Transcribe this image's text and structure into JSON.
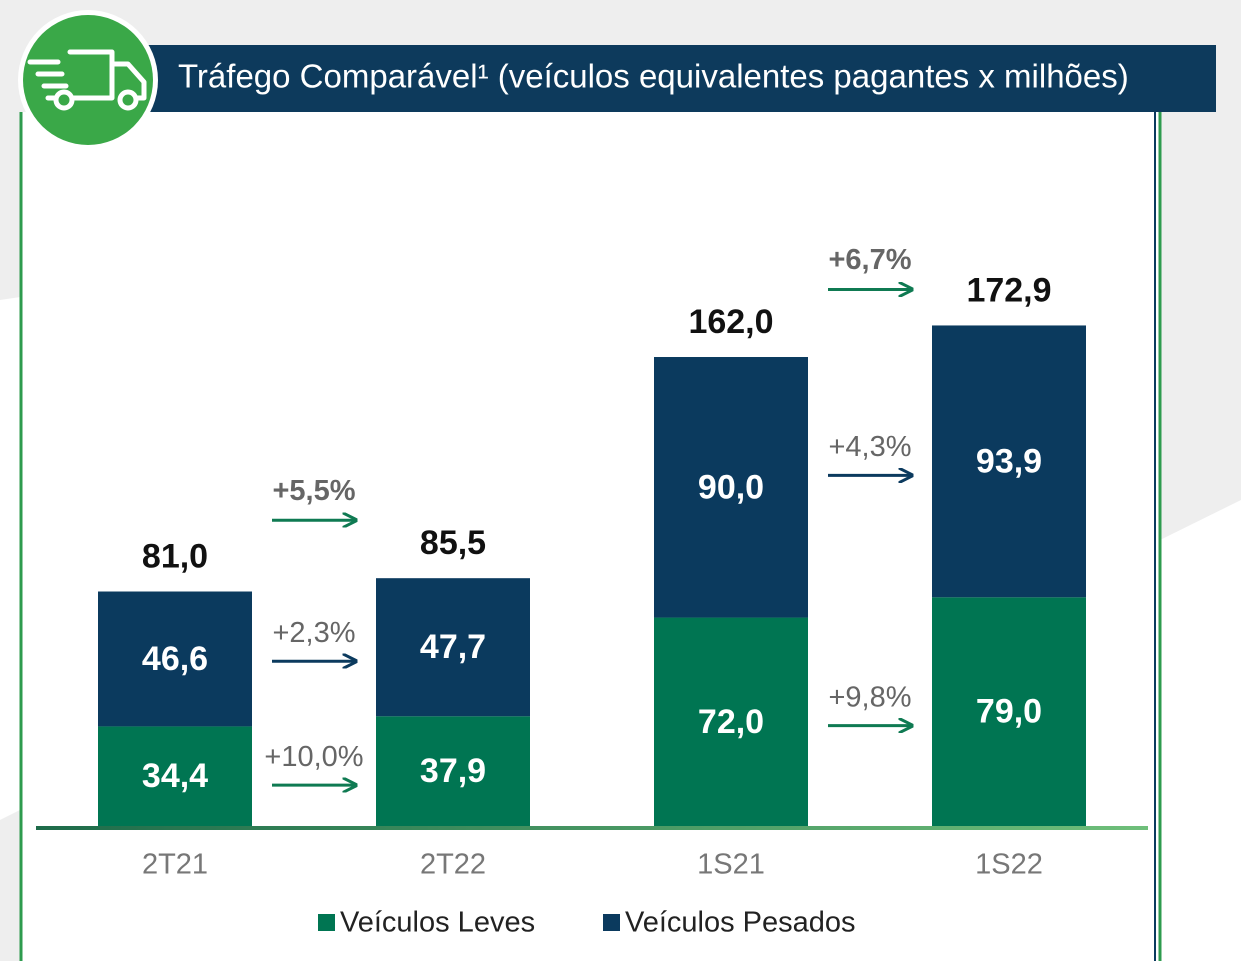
{
  "chart_data": {
    "type": "stacked_bar",
    "title": "Tráfego Comparável¹ (veículos equivalentes pagantes x milhões)",
    "categories": [
      "2T21",
      "2T22",
      "1S21",
      "1S22"
    ],
    "series": [
      {
        "name": "Veículos Leves",
        "color": "#007552",
        "values": [
          34.4,
          37.9,
          72.0,
          79.0
        ],
        "value_labels": [
          "34,4",
          "37,9",
          "72,0",
          "79,0"
        ]
      },
      {
        "name": "Veículos Pesados",
        "color": "#0b3a5e",
        "values": [
          46.6,
          47.7,
          90.0,
          93.9
        ],
        "value_labels": [
          "46,6",
          "47,7",
          "90,0",
          "93,9"
        ]
      }
    ],
    "totals": [
      81.0,
      85.5,
      162.0,
      172.9
    ],
    "total_labels": [
      "81,0",
      "85,5",
      "162,0",
      "172,9"
    ],
    "growth": [
      {
        "total": "+5,5%",
        "series": [
          "+10,0%",
          "+2,3%"
        ]
      },
      {
        "total": "+6,7%",
        "series": [
          "+9,8%",
          "+4,3%"
        ]
      }
    ],
    "ylim": [
      0,
      200
    ],
    "legend": "bottom"
  }
}
